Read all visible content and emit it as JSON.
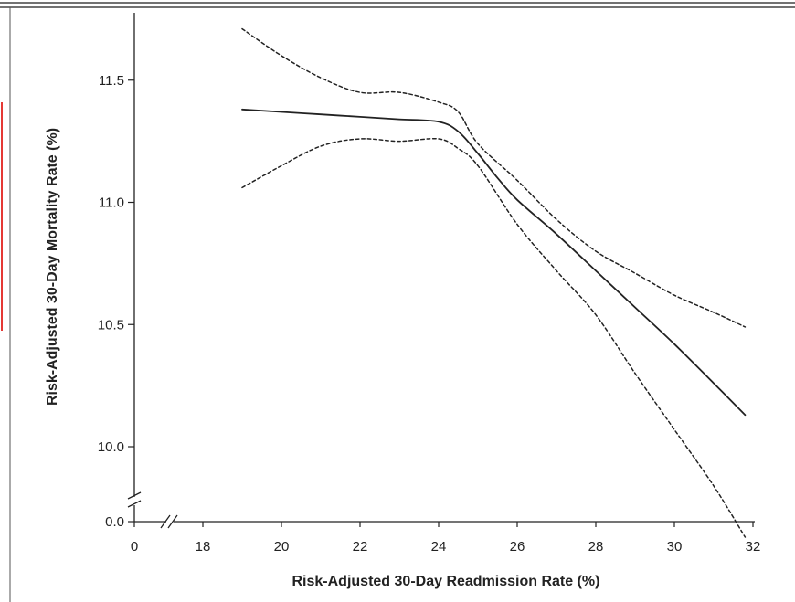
{
  "chart_data": {
    "type": "line",
    "title": "",
    "xlabel": "Risk-Adjusted 30-Day Readmission Rate (%)",
    "ylabel": "Risk-Adjusted 30-Day Mortality Rate (%)",
    "x_ticks": [
      0,
      18,
      20,
      22,
      24,
      26,
      28,
      30,
      32
    ],
    "y_ticks": [
      0.0,
      10.0,
      10.5,
      11.0,
      11.5
    ],
    "x_tick_labels": [
      "0",
      "18",
      "20",
      "22",
      "24",
      "26",
      "28",
      "30",
      "32"
    ],
    "y_tick_labels": [
      "0.0",
      "10.0",
      "10.5",
      "11.0",
      "11.5"
    ],
    "xlim": [
      17,
      32
    ],
    "ylim": [
      9.7,
      11.7
    ],
    "axis_breaks": [
      "x",
      "y"
    ],
    "grid": false,
    "legend": "none",
    "series": [
      {
        "style": "solid",
        "color": "#222222",
        "x": [
          19,
          20,
          21,
          22,
          23,
          24,
          24.5,
          25,
          25.5,
          26,
          27,
          28,
          29,
          30,
          31,
          31.8
        ],
        "y": [
          11.38,
          11.37,
          11.36,
          11.35,
          11.34,
          11.33,
          11.29,
          11.2,
          11.1,
          11.01,
          10.87,
          10.72,
          10.57,
          10.42,
          10.26,
          10.13
        ]
      },
      {
        "style": "dashed",
        "color": "#222222",
        "x": [
          19,
          20,
          21,
          22,
          23,
          24,
          24.5,
          25,
          26,
          27,
          28,
          29,
          30,
          31,
          31.8
        ],
        "y": [
          11.71,
          11.6,
          11.51,
          11.45,
          11.45,
          11.41,
          11.37,
          11.24,
          11.09,
          10.93,
          10.8,
          10.71,
          10.62,
          10.55,
          10.49
        ]
      },
      {
        "style": "dashed",
        "color": "#222222",
        "x": [
          19,
          20,
          21,
          22,
          23,
          24,
          24.5,
          25,
          26,
          27,
          28,
          29,
          30,
          31,
          31.8
        ],
        "y": [
          11.06,
          11.15,
          11.23,
          11.26,
          11.25,
          11.26,
          11.22,
          11.15,
          10.91,
          10.72,
          10.54,
          10.3,
          10.07,
          9.84,
          9.63
        ]
      }
    ]
  }
}
